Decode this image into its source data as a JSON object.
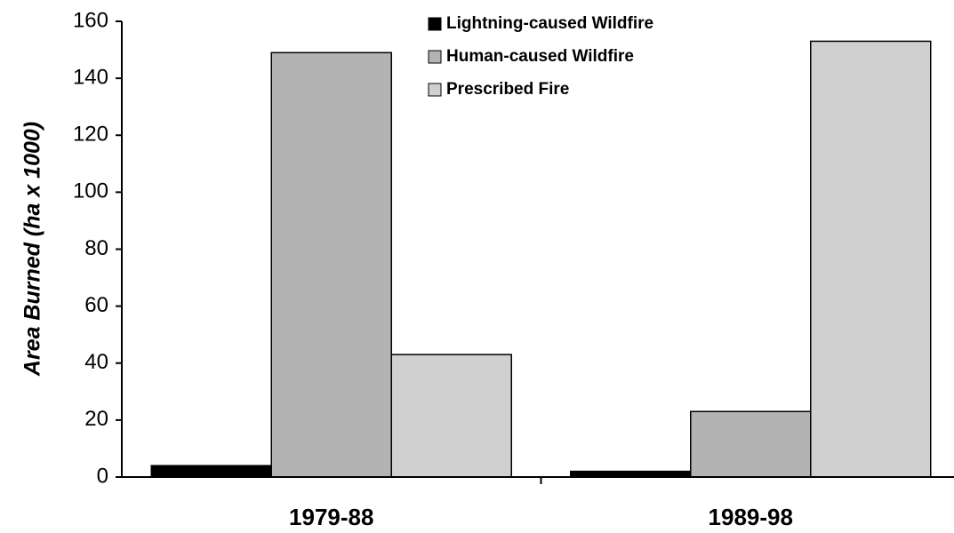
{
  "chart_data": {
    "type": "bar",
    "y_label": "Area Burned (ha x 1000)",
    "categories": [
      "1979-88",
      "1989-98"
    ],
    "series": [
      {
        "name": "Lightning-caused Wildfire",
        "color": "#000000",
        "values": [
          4,
          2
        ]
      },
      {
        "name": "Human-caused Wildfire",
        "color": "#b3b3b3",
        "values": [
          149,
          23
        ]
      },
      {
        "name": "Prescribed Fire",
        "color": "#d0d0d0",
        "values": [
          43,
          153
        ]
      }
    ],
    "ylim": [
      0,
      160
    ],
    "yticks": [
      0,
      20,
      40,
      60,
      80,
      100,
      120,
      140,
      160
    ],
    "legend": "top"
  }
}
